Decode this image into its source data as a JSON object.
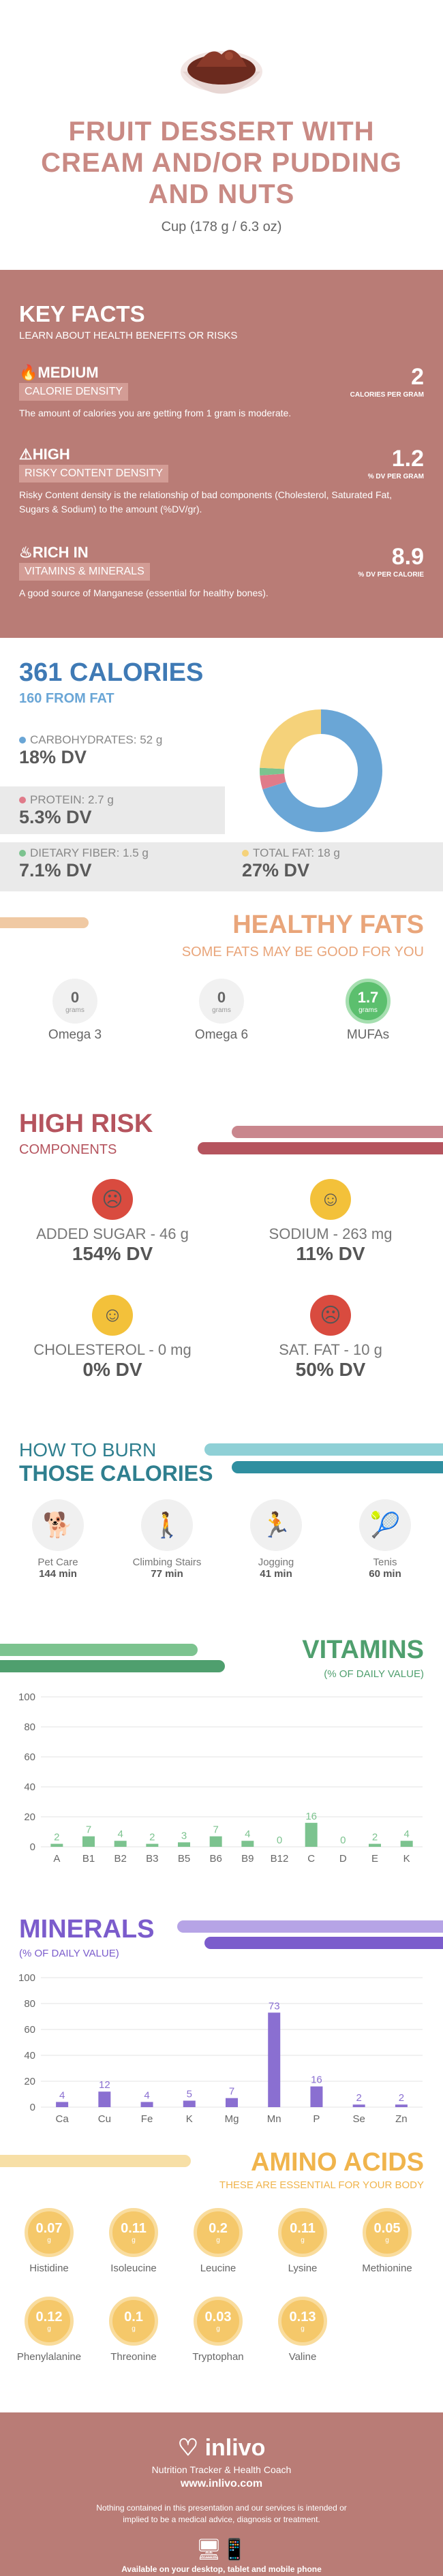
{
  "header": {
    "title_lines": [
      "FRUIT DESSERT WITH",
      "CREAM AND/OR PUDDING",
      "AND NUTS"
    ],
    "portion": "Cup (178 g / 6.3 oz)"
  },
  "key_facts": {
    "title": "KEY FACTS",
    "subtitle": "LEARN ABOUT HEALTH BENEFITS OR RISKS",
    "items": [
      {
        "level": "MEDIUM",
        "label": "CALORIE DENSITY",
        "value": "2",
        "unit": "CALORIES PER GRAM",
        "desc": "The amount of calories you are getting from 1 gram is moderate."
      },
      {
        "level": "HIGH",
        "label": "RISKY CONTENT DENSITY",
        "value": "1.2",
        "unit": "% DV PER GRAM",
        "desc": "Risky Content density is the relationship of bad components (Cholesterol, Saturated Fat, Sugars & Sodium) to the amount (%DV/gr)."
      },
      {
        "level": "RICH  IN",
        "label": "VITAMINS & MINERALS",
        "value": "8.9",
        "unit": "% DV PER CALORIE",
        "desc": "A good source of Manganese (essential for healthy bones)."
      }
    ]
  },
  "calories": {
    "title": "361 CALORIES",
    "from_fat": "160 FROM FAT",
    "carbs": {
      "label": "CARBOHYDRATES: 52 g",
      "dv": "18% DV"
    },
    "protein": {
      "label": "PROTEIN: 2.7 g",
      "dv": "5.3% DV"
    },
    "fiber": {
      "label": "DIETARY FIBER: 1.5 g",
      "dv": "7.1% DV"
    },
    "fat": {
      "label": "TOTAL FAT: 18 g",
      "dv": "27% DV"
    },
    "donut": [
      {
        "name": "carbs",
        "value": 52,
        "color": "#6aa6d6"
      },
      {
        "name": "protein",
        "value": 2.7,
        "color": "#e07b8a"
      },
      {
        "name": "fiber",
        "value": 1.5,
        "color": "#7cc38f"
      },
      {
        "name": "fat",
        "value": 18,
        "color": "#f5d27a"
      }
    ]
  },
  "healthy_fats": {
    "title": "HEALTHY FATS",
    "subtitle": "SOME FATS MAY BE GOOD FOR YOU",
    "items": [
      {
        "value": "0",
        "unit": "grams",
        "name": "Omega 3"
      },
      {
        "value": "0",
        "unit": "grams",
        "name": "Omega 6"
      },
      {
        "value": "1.7",
        "unit": "grams",
        "name": "MUFAs"
      }
    ]
  },
  "high_risk": {
    "title": "HIGH RISK",
    "subtitle": "COMPONENTS",
    "items": [
      {
        "label": "ADDED SUGAR - 46 g",
        "dv": "154% DV",
        "face": "sad"
      },
      {
        "label": "SODIUM - 263 mg",
        "dv": "11% DV",
        "face": "ok"
      },
      {
        "label": "CHOLESTEROL - 0 mg",
        "dv": "0% DV",
        "face": "happy"
      },
      {
        "label": "SAT. FAT - 10 g",
        "dv": "50% DV",
        "face": "sad"
      }
    ]
  },
  "burn": {
    "title1": "HOW TO BURN",
    "title2": "THOSE CALORIES",
    "items": [
      {
        "name": "Pet Care",
        "min": "144 min"
      },
      {
        "name": "Climbing Stairs",
        "min": "77 min"
      },
      {
        "name": "Jogging",
        "min": "41 min"
      },
      {
        "name": "Tenis",
        "min": "60 min"
      }
    ]
  },
  "vitamins": {
    "title": "VITAMINS",
    "subtitle": "(% OF DAILY VALUE)"
  },
  "minerals": {
    "title": "MINERALS",
    "subtitle": "(% OF DAILY VALUE)"
  },
  "chart_data": [
    {
      "type": "bar",
      "title": "VITAMINS",
      "ylim": [
        0,
        100
      ],
      "yticks": [
        0,
        20,
        40,
        60,
        80,
        100
      ],
      "categories": [
        "A",
        "B1",
        "B2",
        "B3",
        "B5",
        "B6",
        "B9",
        "B12",
        "C",
        "D",
        "E",
        "K"
      ],
      "values": [
        2,
        7,
        4,
        2,
        3,
        7,
        4,
        0,
        16,
        0,
        2,
        4
      ],
      "color": "#7cc38f"
    },
    {
      "type": "bar",
      "title": "MINERALS",
      "ylim": [
        0,
        100
      ],
      "yticks": [
        0,
        20,
        40,
        60,
        80,
        100
      ],
      "categories": [
        "Ca",
        "Cu",
        "Fe",
        "K",
        "Mg",
        "Mn",
        "P",
        "Se",
        "Zn"
      ],
      "values": [
        4,
        12,
        4,
        5,
        7,
        73,
        16,
        2,
        2
      ],
      "color": "#8a6fd1"
    }
  ],
  "amino": {
    "title": "AMINO ACIDS",
    "subtitle": "THESE ARE ESSENTIAL FOR YOUR BODY",
    "unit": "g",
    "items": [
      {
        "name": "Histidine",
        "value": "0.07"
      },
      {
        "name": "Isoleucine",
        "value": "0.11"
      },
      {
        "name": "Leucine",
        "value": "0.2"
      },
      {
        "name": "Lysine",
        "value": "0.11"
      },
      {
        "name": "Methionine",
        "value": "0.05"
      },
      {
        "name": "Phenylalanine",
        "value": "0.12"
      },
      {
        "name": "Threonine",
        "value": "0.1"
      },
      {
        "name": "Tryptophan",
        "value": "0.03"
      },
      {
        "name": "Valine",
        "value": "0.13"
      }
    ]
  },
  "footer": {
    "brand": "inlivo",
    "tagline": "Nutrition Tracker & Health Coach",
    "url": "www.inlivo.com",
    "disclaimer": "Nothing contained in this presentation and our services is intended or implied to be a medical advice, diagnosis or treatment.",
    "available": "Available on your desktop, tablet and mobile phone"
  }
}
